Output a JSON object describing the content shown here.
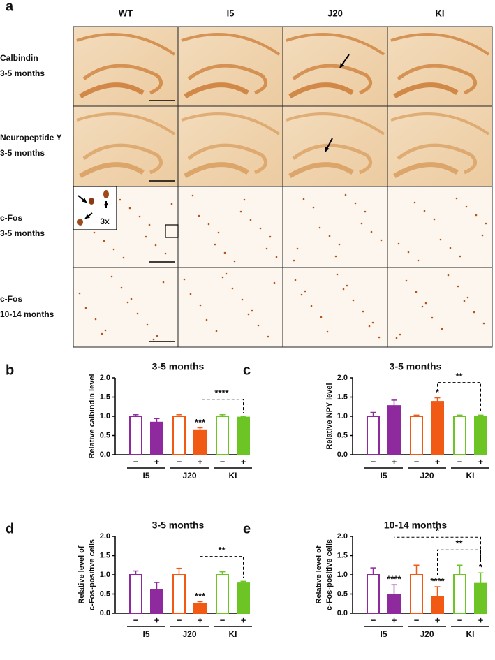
{
  "panel_a": {
    "label": "a",
    "columns": [
      "WT",
      "I5",
      "J20",
      "KI"
    ],
    "rows": [
      {
        "lines": [
          "Calbindin",
          "3-5 months"
        ]
      },
      {
        "lines": [
          "Neuropeptide Y",
          "3-5 months"
        ]
      },
      {
        "lines": [
          "c-Fos",
          "3-5 months"
        ]
      },
      {
        "lines": [
          "c-Fos",
          "10-14 months"
        ]
      }
    ],
    "inset": "3x"
  },
  "chart_data": [
    {
      "type": "bar",
      "panel": "b",
      "title": "3-5 months",
      "ylabel": [
        "Relative calbindin level"
      ],
      "groups": [
        "I5",
        "J20",
        "KI"
      ],
      "categories": [
        "−",
        "+",
        "−",
        "+",
        "−",
        "+"
      ],
      "values": [
        1.0,
        0.84,
        1.0,
        0.64,
        1.0,
        0.97
      ],
      "errors": [
        0.04,
        0.1,
        0.04,
        0.06,
        0.04,
        0.03
      ],
      "colors": [
        "#8e2a9e",
        "#8e2a9e",
        "#f05a14",
        "#f05a14",
        "#6cc425",
        "#6cc425"
      ],
      "filled": [
        false,
        true,
        false,
        true,
        false,
        true
      ],
      "significance": [
        null,
        null,
        null,
        "***",
        null,
        null
      ],
      "comparisons": [
        {
          "from": 3,
          "to": 5,
          "label": "****"
        }
      ],
      "ylim": [
        0,
        2
      ],
      "yticks": [
        {
          "value": 0,
          "label": "0.0"
        },
        0.5,
        {
          "value": 1,
          "label": "1.0"
        },
        1.5,
        {
          "value": 2,
          "label": "2.0"
        }
      ]
    },
    {
      "type": "bar",
      "panel": "c",
      "title": "3-5 months",
      "ylabel": [
        "Relative NPY level"
      ],
      "groups": [
        "I5",
        "J20",
        "KI"
      ],
      "categories": [
        "−",
        "+",
        "−",
        "+",
        "−",
        "+"
      ],
      "values": [
        1.0,
        1.27,
        1.0,
        1.38,
        1.0,
        1.0
      ],
      "errors": [
        0.1,
        0.15,
        0.03,
        0.1,
        0.03,
        0.03
      ],
      "colors": [
        "#8e2a9e",
        "#8e2a9e",
        "#f05a14",
        "#f05a14",
        "#6cc425",
        "#6cc425"
      ],
      "filled": [
        false,
        true,
        false,
        true,
        false,
        true
      ],
      "significance": [
        null,
        null,
        null,
        "*",
        null,
        null
      ],
      "comparisons": [
        {
          "from": 3,
          "to": 5,
          "label": "**"
        }
      ],
      "ylim": [
        0,
        2
      ],
      "yticks": [
        {
          "value": 0,
          "label": "0.0"
        },
        0.5,
        {
          "value": 1,
          "label": "1.0"
        },
        1.5,
        {
          "value": 2,
          "label": "2.0"
        }
      ]
    },
    {
      "type": "bar",
      "panel": "d",
      "title": "3-5 months",
      "ylabel": [
        "Relative level of",
        "c-Fos-positive cells"
      ],
      "groups": [
        "I5",
        "J20",
        "KI"
      ],
      "categories": [
        "−",
        "+",
        "−",
        "+",
        "−",
        "+"
      ],
      "values": [
        1.0,
        0.6,
        1.0,
        0.24,
        1.0,
        0.78
      ],
      "errors": [
        0.1,
        0.2,
        0.17,
        0.06,
        0.08,
        0.05
      ],
      "colors": [
        "#8e2a9e",
        "#8e2a9e",
        "#f05a14",
        "#f05a14",
        "#6cc425",
        "#6cc425"
      ],
      "filled": [
        false,
        true,
        false,
        true,
        false,
        true
      ],
      "significance": [
        null,
        null,
        null,
        "***",
        null,
        null
      ],
      "comparisons": [
        {
          "from": 3,
          "to": 5,
          "label": "**"
        }
      ],
      "ylim": [
        0,
        2
      ],
      "yticks": [
        {
          "value": 0,
          "label": "0.0"
        },
        0.5,
        {
          "value": 1,
          "label": "1.0"
        },
        1.5,
        {
          "value": 2,
          "label": "2.0"
        }
      ]
    },
    {
      "type": "bar",
      "panel": "e",
      "title": "10-14 months",
      "ylabel": [
        "Relative level of",
        "c-Fos-positive cells"
      ],
      "groups": [
        "I5",
        "J20",
        "KI"
      ],
      "categories": [
        "−",
        "+",
        "−",
        "+",
        "−",
        "+"
      ],
      "values": [
        1.0,
        0.49,
        1.0,
        0.42,
        1.0,
        0.77
      ],
      "errors": [
        0.18,
        0.25,
        0.25,
        0.27,
        0.25,
        0.28
      ],
      "colors": [
        "#8e2a9e",
        "#8e2a9e",
        "#f05a14",
        "#f05a14",
        "#6cc425",
        "#6cc425"
      ],
      "filled": [
        false,
        true,
        false,
        true,
        false,
        true
      ],
      "significance": [
        null,
        "****",
        null,
        "****",
        null,
        "*"
      ],
      "comparisons": [
        {
          "from": 3,
          "to": 5,
          "label": "**"
        },
        {
          "from": 1,
          "to": 5,
          "label": "*"
        }
      ],
      "ylim": [
        0,
        2
      ],
      "yticks": [
        {
          "value": 0,
          "label": "0.0"
        },
        0.5,
        {
          "value": 1,
          "label": "1.0"
        },
        1.5,
        {
          "value": 2,
          "label": "2.0"
        }
      ]
    }
  ]
}
